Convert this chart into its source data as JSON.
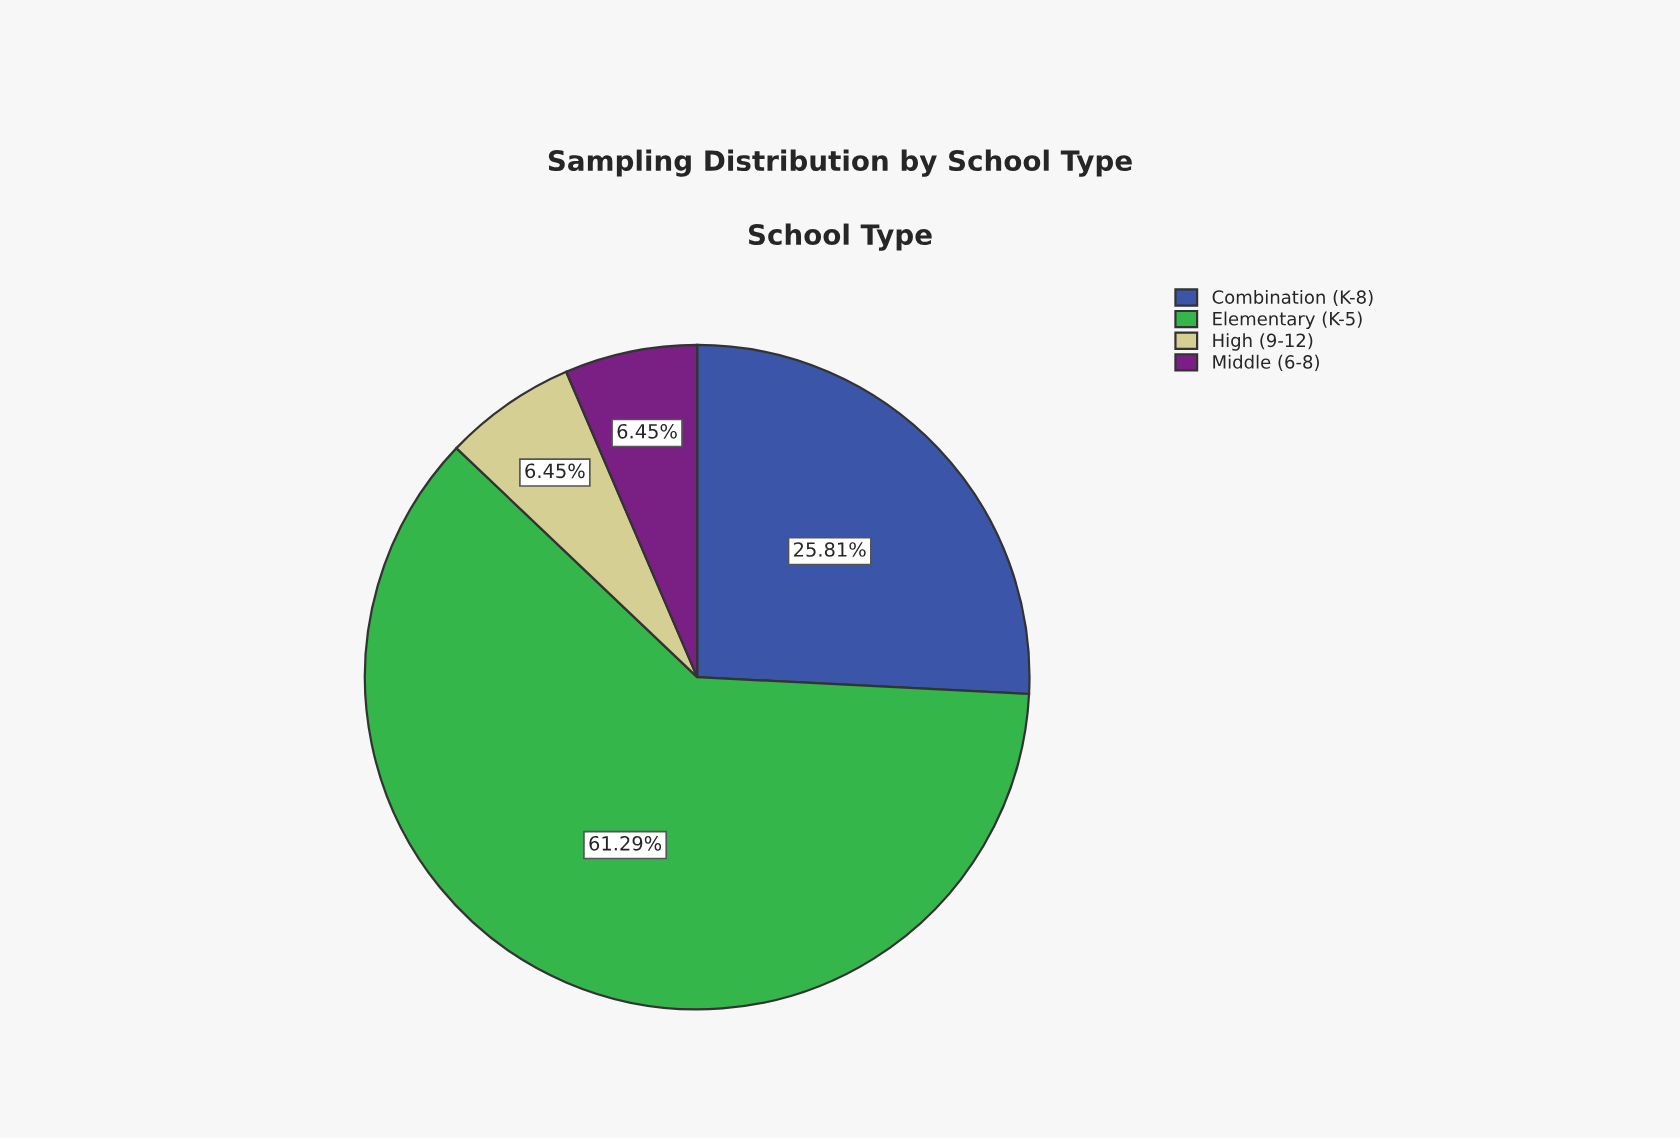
{
  "chart_data": {
    "type": "pie",
    "title": "Sampling Distribution by School Type",
    "subtitle": "School Type",
    "categories": [
      "Combination (K-8)",
      "Elementary (K-5)",
      "High (9-12)",
      "Middle (6-8)"
    ],
    "values": [
      25.81,
      61.29,
      6.45,
      6.45
    ],
    "value_labels": [
      "25.81%",
      "61.29%",
      "6.45%",
      "6.45%"
    ],
    "colors": [
      "#3b56a8",
      "#35b64a",
      "#d6cf94",
      "#7a1f83"
    ],
    "legend": "top right"
  }
}
